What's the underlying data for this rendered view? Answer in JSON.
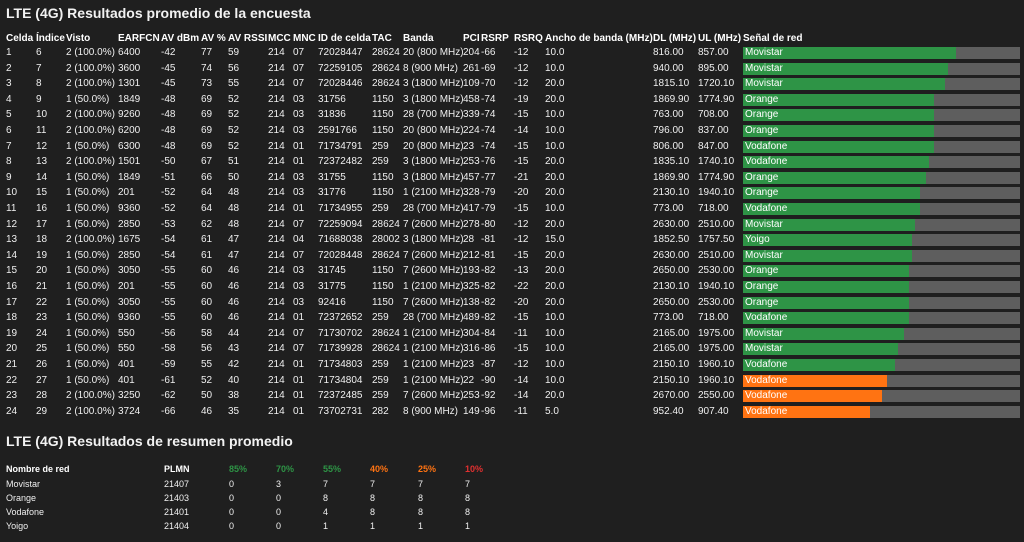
{
  "survey": {
    "title": "LTE (4G) Resultados promedio de la encuesta",
    "headers": {
      "celda": "Celda",
      "indice": "Índice",
      "visto": "Visto",
      "earfcn": "EARFCN",
      "av_dbm": "AV dBm",
      "av_pct": "AV %",
      "av_rssi": "AV RSSI",
      "mcc": "MCC",
      "mnc": "MNC",
      "id_celda": "ID de celda",
      "tac": "TAC",
      "banda": "Banda",
      "pci": "PCI",
      "rsrp": "RSRP",
      "rsrq": "RSRQ",
      "ancho": "Ancho de banda (MHz)",
      "dl": "DL (MHz)",
      "ul": "UL (MHz)",
      "senal": "Señal de red"
    },
    "colors": {
      "green": "#2e9446",
      "orange": "#ff7312",
      "track": "#5e5e5e"
    },
    "rows": [
      {
        "celda": "1",
        "indice": "6",
        "visto": "2 (100.0%)",
        "earfcn": "6400",
        "av_dbm": "-42",
        "av_pct": "77",
        "av_rssi": "59",
        "mcc": "214",
        "mnc": "07",
        "id_celda": "72028447",
        "tac": "28624",
        "banda": "20 (800 MHz)",
        "pci": "204",
        "rsrp": "-66",
        "rsrq": "-12",
        "ancho": "10.0",
        "dl": "816.00",
        "ul": "857.00",
        "network": "Movistar",
        "signal": 77,
        "color": "green"
      },
      {
        "celda": "2",
        "indice": "7",
        "visto": "2 (100.0%)",
        "earfcn": "3600",
        "av_dbm": "-45",
        "av_pct": "74",
        "av_rssi": "56",
        "mcc": "214",
        "mnc": "07",
        "id_celda": "72259105",
        "tac": "28624",
        "banda": "8 (900 MHz)",
        "pci": "261",
        "rsrp": "-69",
        "rsrq": "-12",
        "ancho": "10.0",
        "dl": "940.00",
        "ul": "895.00",
        "network": "Movistar",
        "signal": 74,
        "color": "green"
      },
      {
        "celda": "3",
        "indice": "8",
        "visto": "2 (100.0%)",
        "earfcn": "1301",
        "av_dbm": "-45",
        "av_pct": "73",
        "av_rssi": "55",
        "mcc": "214",
        "mnc": "07",
        "id_celda": "72028446",
        "tac": "28624",
        "banda": "3 (1800 MHz)",
        "pci": "109",
        "rsrp": "-70",
        "rsrq": "-12",
        "ancho": "20.0",
        "dl": "1815.10",
        "ul": "1720.10",
        "network": "Movistar",
        "signal": 73,
        "color": "green"
      },
      {
        "celda": "4",
        "indice": "9",
        "visto": "1 (50.0%)",
        "earfcn": "1849",
        "av_dbm": "-48",
        "av_pct": "69",
        "av_rssi": "52",
        "mcc": "214",
        "mnc": "03",
        "id_celda": "31756",
        "tac": "1150",
        "banda": "3 (1800 MHz)",
        "pci": "458",
        "rsrp": "-74",
        "rsrq": "-19",
        "ancho": "20.0",
        "dl": "1869.90",
        "ul": "1774.90",
        "network": "Orange",
        "signal": 69,
        "color": "green"
      },
      {
        "celda": "5",
        "indice": "10",
        "visto": "2 (100.0%)",
        "earfcn": "9260",
        "av_dbm": "-48",
        "av_pct": "69",
        "av_rssi": "52",
        "mcc": "214",
        "mnc": "03",
        "id_celda": "31836",
        "tac": "1150",
        "banda": "28 (700 MHz)",
        "pci": "339",
        "rsrp": "-74",
        "rsrq": "-15",
        "ancho": "10.0",
        "dl": "763.00",
        "ul": "708.00",
        "network": "Orange",
        "signal": 69,
        "color": "green"
      },
      {
        "celda": "6",
        "indice": "11",
        "visto": "2 (100.0%)",
        "earfcn": "6200",
        "av_dbm": "-48",
        "av_pct": "69",
        "av_rssi": "52",
        "mcc": "214",
        "mnc": "03",
        "id_celda": "2591766",
        "tac": "1150",
        "banda": "20 (800 MHz)",
        "pci": "224",
        "rsrp": "-74",
        "rsrq": "-14",
        "ancho": "10.0",
        "dl": "796.00",
        "ul": "837.00",
        "network": "Orange",
        "signal": 69,
        "color": "green"
      },
      {
        "celda": "7",
        "indice": "12",
        "visto": "1 (50.0%)",
        "earfcn": "6300",
        "av_dbm": "-48",
        "av_pct": "69",
        "av_rssi": "52",
        "mcc": "214",
        "mnc": "01",
        "id_celda": "71734791",
        "tac": "259",
        "banda": "20 (800 MHz)",
        "pci": "23",
        "rsrp": "-74",
        "rsrq": "-15",
        "ancho": "10.0",
        "dl": "806.00",
        "ul": "847.00",
        "network": "Vodafone",
        "signal": 69,
        "color": "green"
      },
      {
        "celda": "8",
        "indice": "13",
        "visto": "2 (100.0%)",
        "earfcn": "1501",
        "av_dbm": "-50",
        "av_pct": "67",
        "av_rssi": "51",
        "mcc": "214",
        "mnc": "01",
        "id_celda": "72372482",
        "tac": "259",
        "banda": "3 (1800 MHz)",
        "pci": "253",
        "rsrp": "-76",
        "rsrq": "-15",
        "ancho": "20.0",
        "dl": "1835.10",
        "ul": "1740.10",
        "network": "Vodafone",
        "signal": 67,
        "color": "green"
      },
      {
        "celda": "9",
        "indice": "14",
        "visto": "1 (50.0%)",
        "earfcn": "1849",
        "av_dbm": "-51",
        "av_pct": "66",
        "av_rssi": "50",
        "mcc": "214",
        "mnc": "03",
        "id_celda": "31755",
        "tac": "1150",
        "banda": "3 (1800 MHz)",
        "pci": "457",
        "rsrp": "-77",
        "rsrq": "-21",
        "ancho": "20.0",
        "dl": "1869.90",
        "ul": "1774.90",
        "network": "Orange",
        "signal": 66,
        "color": "green"
      },
      {
        "celda": "10",
        "indice": "15",
        "visto": "1 (50.0%)",
        "earfcn": "201",
        "av_dbm": "-52",
        "av_pct": "64",
        "av_rssi": "48",
        "mcc": "214",
        "mnc": "03",
        "id_celda": "31776",
        "tac": "1150",
        "banda": "1 (2100 MHz)",
        "pci": "328",
        "rsrp": "-79",
        "rsrq": "-20",
        "ancho": "20.0",
        "dl": "2130.10",
        "ul": "1940.10",
        "network": "Orange",
        "signal": 64,
        "color": "green"
      },
      {
        "celda": "11",
        "indice": "16",
        "visto": "1 (50.0%)",
        "earfcn": "9360",
        "av_dbm": "-52",
        "av_pct": "64",
        "av_rssi": "48",
        "mcc": "214",
        "mnc": "01",
        "id_celda": "71734955",
        "tac": "259",
        "banda": "28 (700 MHz)",
        "pci": "417",
        "rsrp": "-79",
        "rsrq": "-15",
        "ancho": "10.0",
        "dl": "773.00",
        "ul": "718.00",
        "network": "Vodafone",
        "signal": 64,
        "color": "green"
      },
      {
        "celda": "12",
        "indice": "17",
        "visto": "1 (50.0%)",
        "earfcn": "2850",
        "av_dbm": "-53",
        "av_pct": "62",
        "av_rssi": "48",
        "mcc": "214",
        "mnc": "07",
        "id_celda": "72259094",
        "tac": "28624",
        "banda": "7 (2600 MHz)",
        "pci": "278",
        "rsrp": "-80",
        "rsrq": "-12",
        "ancho": "20.0",
        "dl": "2630.00",
        "ul": "2510.00",
        "network": "Movistar",
        "signal": 62,
        "color": "green"
      },
      {
        "celda": "13",
        "indice": "18",
        "visto": "2 (100.0%)",
        "earfcn": "1675",
        "av_dbm": "-54",
        "av_pct": "61",
        "av_rssi": "47",
        "mcc": "214",
        "mnc": "04",
        "id_celda": "71688038",
        "tac": "28002",
        "banda": "3 (1800 MHz)",
        "pci": "28",
        "rsrp": "-81",
        "rsrq": "-12",
        "ancho": "15.0",
        "dl": "1852.50",
        "ul": "1757.50",
        "network": "Yoigo",
        "signal": 61,
        "color": "green"
      },
      {
        "celda": "14",
        "indice": "19",
        "visto": "1 (50.0%)",
        "earfcn": "2850",
        "av_dbm": "-54",
        "av_pct": "61",
        "av_rssi": "47",
        "mcc": "214",
        "mnc": "07",
        "id_celda": "72028448",
        "tac": "28624",
        "banda": "7 (2600 MHz)",
        "pci": "212",
        "rsrp": "-81",
        "rsrq": "-15",
        "ancho": "20.0",
        "dl": "2630.00",
        "ul": "2510.00",
        "network": "Movistar",
        "signal": 61,
        "color": "green"
      },
      {
        "celda": "15",
        "indice": "20",
        "visto": "1 (50.0%)",
        "earfcn": "3050",
        "av_dbm": "-55",
        "av_pct": "60",
        "av_rssi": "46",
        "mcc": "214",
        "mnc": "03",
        "id_celda": "31745",
        "tac": "1150",
        "banda": "7 (2600 MHz)",
        "pci": "193",
        "rsrp": "-82",
        "rsrq": "-13",
        "ancho": "20.0",
        "dl": "2650.00",
        "ul": "2530.00",
        "network": "Orange",
        "signal": 60,
        "color": "green"
      },
      {
        "celda": "16",
        "indice": "21",
        "visto": "1 (50.0%)",
        "earfcn": "201",
        "av_dbm": "-55",
        "av_pct": "60",
        "av_rssi": "46",
        "mcc": "214",
        "mnc": "03",
        "id_celda": "31775",
        "tac": "1150",
        "banda": "1 (2100 MHz)",
        "pci": "325",
        "rsrp": "-82",
        "rsrq": "-22",
        "ancho": "20.0",
        "dl": "2130.10",
        "ul": "1940.10",
        "network": "Orange",
        "signal": 60,
        "color": "green"
      },
      {
        "celda": "17",
        "indice": "22",
        "visto": "1 (50.0%)",
        "earfcn": "3050",
        "av_dbm": "-55",
        "av_pct": "60",
        "av_rssi": "46",
        "mcc": "214",
        "mnc": "03",
        "id_celda": "92416",
        "tac": "1150",
        "banda": "7 (2600 MHz)",
        "pci": "138",
        "rsrp": "-82",
        "rsrq": "-20",
        "ancho": "20.0",
        "dl": "2650.00",
        "ul": "2530.00",
        "network": "Orange",
        "signal": 60,
        "color": "green"
      },
      {
        "celda": "18",
        "indice": "23",
        "visto": "1 (50.0%)",
        "earfcn": "9360",
        "av_dbm": "-55",
        "av_pct": "60",
        "av_rssi": "46",
        "mcc": "214",
        "mnc": "01",
        "id_celda": "72372652",
        "tac": "259",
        "banda": "28 (700 MHz)",
        "pci": "489",
        "rsrp": "-82",
        "rsrq": "-15",
        "ancho": "10.0",
        "dl": "773.00",
        "ul": "718.00",
        "network": "Vodafone",
        "signal": 60,
        "color": "green"
      },
      {
        "celda": "19",
        "indice": "24",
        "visto": "1 (50.0%)",
        "earfcn": "550",
        "av_dbm": "-56",
        "av_pct": "58",
        "av_rssi": "44",
        "mcc": "214",
        "mnc": "07",
        "id_celda": "71730702",
        "tac": "28624",
        "banda": "1 (2100 MHz)",
        "pci": "304",
        "rsrp": "-84",
        "rsrq": "-11",
        "ancho": "10.0",
        "dl": "2165.00",
        "ul": "1975.00",
        "network": "Movistar",
        "signal": 58,
        "color": "green"
      },
      {
        "celda": "20",
        "indice": "25",
        "visto": "1 (50.0%)",
        "earfcn": "550",
        "av_dbm": "-58",
        "av_pct": "56",
        "av_rssi": "43",
        "mcc": "214",
        "mnc": "07",
        "id_celda": "71739928",
        "tac": "28624",
        "banda": "1 (2100 MHz)",
        "pci": "316",
        "rsrp": "-86",
        "rsrq": "-15",
        "ancho": "10.0",
        "dl": "2165.00",
        "ul": "1975.00",
        "network": "Movistar",
        "signal": 56,
        "color": "green"
      },
      {
        "celda": "21",
        "indice": "26",
        "visto": "1 (50.0%)",
        "earfcn": "401",
        "av_dbm": "-59",
        "av_pct": "55",
        "av_rssi": "42",
        "mcc": "214",
        "mnc": "01",
        "id_celda": "71734803",
        "tac": "259",
        "banda": "1 (2100 MHz)",
        "pci": "23",
        "rsrp": "-87",
        "rsrq": "-12",
        "ancho": "10.0",
        "dl": "2150.10",
        "ul": "1960.10",
        "network": "Vodafone",
        "signal": 55,
        "color": "green"
      },
      {
        "celda": "22",
        "indice": "27",
        "visto": "1 (50.0%)",
        "earfcn": "401",
        "av_dbm": "-61",
        "av_pct": "52",
        "av_rssi": "40",
        "mcc": "214",
        "mnc": "01",
        "id_celda": "71734804",
        "tac": "259",
        "banda": "1 (2100 MHz)",
        "pci": "22",
        "rsrp": "-90",
        "rsrq": "-14",
        "ancho": "10.0",
        "dl": "2150.10",
        "ul": "1960.10",
        "network": "Vodafone",
        "signal": 52,
        "color": "orange"
      },
      {
        "celda": "23",
        "indice": "28",
        "visto": "2 (100.0%)",
        "earfcn": "3250",
        "av_dbm": "-62",
        "av_pct": "50",
        "av_rssi": "38",
        "mcc": "214",
        "mnc": "01",
        "id_celda": "72372485",
        "tac": "259",
        "banda": "7 (2600 MHz)",
        "pci": "253",
        "rsrp": "-92",
        "rsrq": "-14",
        "ancho": "20.0",
        "dl": "2670.00",
        "ul": "2550.00",
        "network": "Vodafone",
        "signal": 50,
        "color": "orange"
      },
      {
        "celda": "24",
        "indice": "29",
        "visto": "2 (100.0%)",
        "earfcn": "3724",
        "av_dbm": "-66",
        "av_pct": "46",
        "av_rssi": "35",
        "mcc": "214",
        "mnc": "01",
        "id_celda": "73702731",
        "tac": "282",
        "banda": "8 (900 MHz)",
        "pci": "149",
        "rsrp": "-96",
        "rsrq": "-11",
        "ancho": "5.0",
        "dl": "952.40",
        "ul": "907.40",
        "network": "Vodafone",
        "signal": 46,
        "color": "orange"
      }
    ]
  },
  "summary": {
    "title": "LTE (4G) Resultados de resumen promedio",
    "headers": {
      "name": "Nombre de red",
      "plmn": "PLMN"
    },
    "thresholds": [
      {
        "label": "85%",
        "color": "#2e9446"
      },
      {
        "label": "70%",
        "color": "#2e9446"
      },
      {
        "label": "55%",
        "color": "#2e9446"
      },
      {
        "label": "40%",
        "color": "#ff7312"
      },
      {
        "label": "25%",
        "color": "#ff7312"
      },
      {
        "label": "10%",
        "color": "#e23030"
      }
    ],
    "rows": [
      {
        "name": "Movistar",
        "plmn": "21407",
        "counts": [
          "0",
          "3",
          "7",
          "7",
          "7",
          "7"
        ]
      },
      {
        "name": "Orange",
        "plmn": "21403",
        "counts": [
          "0",
          "0",
          "8",
          "8",
          "8",
          "8"
        ]
      },
      {
        "name": "Vodafone",
        "plmn": "21401",
        "counts": [
          "0",
          "0",
          "4",
          "8",
          "8",
          "8"
        ]
      },
      {
        "name": "Yoigo",
        "plmn": "21404",
        "counts": [
          "0",
          "0",
          "1",
          "1",
          "1",
          "1"
        ]
      }
    ]
  }
}
